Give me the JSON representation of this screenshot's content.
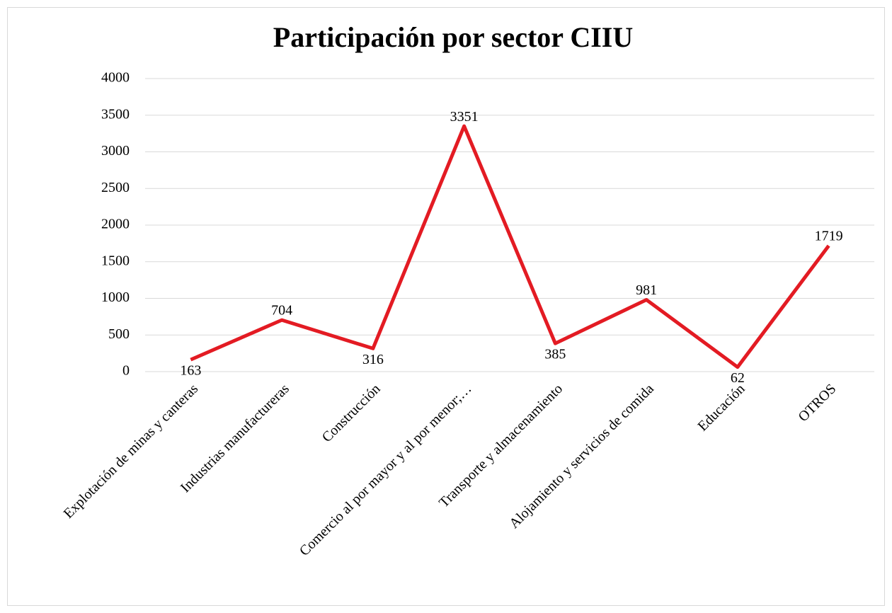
{
  "chart_data": {
    "type": "line",
    "title": "Participación por sector CIIU",
    "categories": [
      "Explotación de minas y canteras",
      "Industrias manufactureras",
      "Construcción",
      "Comercio al por mayor y al por menor;…",
      "Transporte y almacenamiento",
      "Alojamiento y servicios de comida",
      "Educación",
      "OTROS"
    ],
    "series": [
      {
        "name": "Participación",
        "color": "#e31b23",
        "values": [
          163,
          704,
          316,
          3351,
          385,
          981,
          62,
          1719
        ]
      }
    ],
    "ylim": [
      0,
      4000
    ],
    "yticks": [
      0,
      500,
      1000,
      1500,
      2000,
      2500,
      3000,
      3500,
      4000
    ],
    "grid": true
  }
}
